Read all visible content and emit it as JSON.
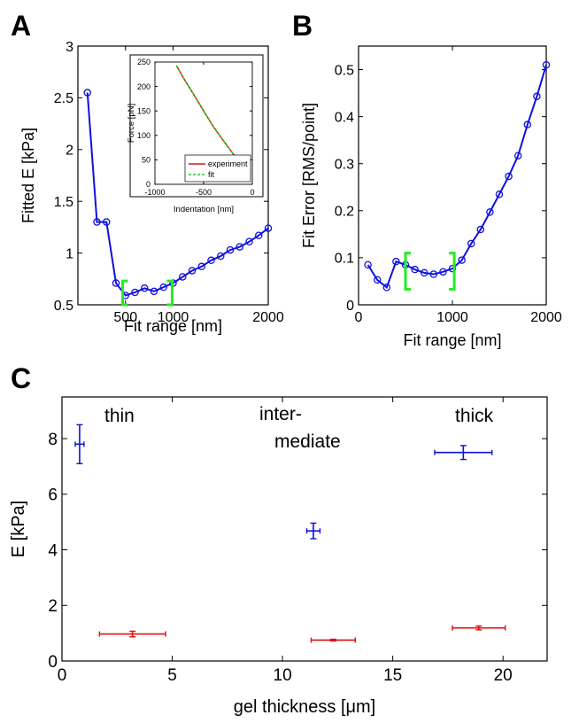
{
  "panels": [
    {
      "letter": "A"
    },
    {
      "letter": "B"
    },
    {
      "letter": "C"
    }
  ],
  "colors": {
    "blue": "#1010e0",
    "red": "#e01010",
    "green": "#22ee22",
    "fit_green": "#22cc22"
  },
  "chart_data": [
    {
      "type": "line",
      "panel": "A",
      "xlabel": "Fit range [nm]",
      "ylabel": "Fitted E [kPa]",
      "xlim": [
        0,
        2000
      ],
      "ylim": [
        0.5,
        3
      ],
      "xticks": [
        "500",
        "1000",
        "2000"
      ],
      "yticks": [
        "0.5",
        "1",
        "1.5",
        "2",
        "2.5",
        "3"
      ],
      "x": [
        100,
        200,
        300,
        400,
        500,
        600,
        700,
        800,
        900,
        1000,
        1100,
        1200,
        1300,
        1400,
        1500,
        1600,
        1700,
        1800,
        1900,
        2000
      ],
      "series": [
        {
          "values": [
            2.55,
            1.3,
            1.3,
            0.71,
            0.59,
            0.62,
            0.66,
            0.63,
            0.67,
            0.71,
            0.77,
            0.83,
            0.87,
            0.93,
            0.97,
            1.03,
            1.06,
            1.11,
            1.17,
            1.24
          ]
        }
      ],
      "bracket_range": [
        470,
        990
      ],
      "inset": {
        "type": "line",
        "xlabel": "Indentation [nm]",
        "ylabel": "Force [pN]",
        "xlim": [
          -1000,
          0
        ],
        "ylim": [
          0,
          250
        ],
        "xticks": [
          "-1000",
          "-500",
          "0"
        ],
        "yticks": [
          "0",
          "50",
          "100",
          "150",
          "200",
          "250"
        ],
        "series": [
          {
            "name": "experiment",
            "x": [
              -780,
              -700,
              -600,
              -500,
              -400,
              -300,
              -200,
              -100,
              -20
            ],
            "values": [
              243,
              215,
              183,
              150,
              118,
              90,
              63,
              38,
              20
            ]
          },
          {
            "name": "fit",
            "x": [
              -780,
              -700,
              -600,
              -500,
              -400,
              -300,
              -200,
              -100,
              -20
            ],
            "values": [
              243,
              215,
              183,
              150,
              118,
              90,
              63,
              38,
              20
            ]
          }
        ],
        "legend_position": "bottom-right"
      }
    },
    {
      "type": "line",
      "panel": "B",
      "xlabel": "Fit range [nm]",
      "ylabel": "Fit Error [RMS/point]",
      "xlim": [
        0,
        2000
      ],
      "ylim": [
        0,
        0.55
      ],
      "xticks": [
        "0",
        "1000",
        "2000"
      ],
      "yticks": [
        "0",
        "0.1",
        "0.2",
        "0.3",
        "0.4",
        "0.5"
      ],
      "x": [
        100,
        200,
        300,
        400,
        500,
        600,
        700,
        800,
        900,
        1000,
        1100,
        1200,
        1300,
        1400,
        1500,
        1600,
        1700,
        1800,
        1900,
        2000
      ],
      "series": [
        {
          "values": [
            0.085,
            0.053,
            0.037,
            0.092,
            0.085,
            0.075,
            0.068,
            0.065,
            0.07,
            0.077,
            0.095,
            0.13,
            0.16,
            0.197,
            0.235,
            0.273,
            0.317,
            0.383,
            0.443,
            0.51
          ]
        }
      ],
      "bracket_range": [
        500,
        1020
      ]
    },
    {
      "type": "scatter",
      "panel": "C",
      "xlabel": "gel thickness [μm]",
      "ylabel": "E [kPa]",
      "xlim": [
        0,
        22
      ],
      "ylim": [
        0,
        9.5
      ],
      "xticks": [
        "0",
        "5",
        "10",
        "15",
        "20"
      ],
      "yticks": [
        "0",
        "2",
        "4",
        "6",
        "8"
      ],
      "annotations": [
        "thin",
        "inter-",
        "mediate",
        "thick"
      ],
      "series": [
        {
          "color": "blue",
          "points": [
            {
              "x": 0.8,
              "y": 7.8,
              "xerr": 0.2,
              "yerr": 0.7
            },
            {
              "x": 11.4,
              "y": 4.68,
              "xerr": 0.3,
              "yerr": 0.28
            },
            {
              "x": 18.2,
              "y": 7.5,
              "xerr": 1.3,
              "yerr": 0.25
            }
          ]
        },
        {
          "color": "red",
          "points": [
            {
              "x": 3.2,
              "y": 0.97,
              "xerr": 1.5,
              "yerr": 0.1
            },
            {
              "x": 12.3,
              "y": 0.75,
              "xerr": 1.0,
              "yerr": 0.03
            },
            {
              "x": 18.9,
              "y": 1.19,
              "xerr": 1.2,
              "yerr": 0.07
            }
          ]
        }
      ]
    }
  ]
}
